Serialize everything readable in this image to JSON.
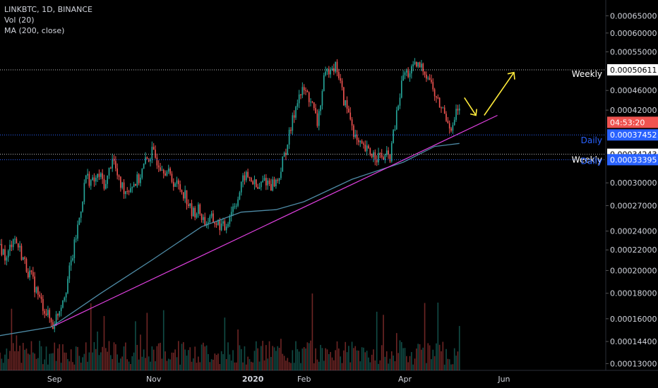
{
  "header": {
    "symbol_line": "LINKBTC, 1D, BINANCE",
    "vol_line": "Vol (20)",
    "ma_line": "MA (200, close)"
  },
  "chart_data": {
    "type": "candlestick",
    "symbol": "LINKBTC",
    "interval": "1D",
    "exchange": "BINANCE",
    "x_labels": [
      "Sep",
      "Nov",
      "2020",
      "Feb",
      "Apr",
      "Jun"
    ],
    "y_ticks": [
      "0.00065000",
      "0.00060000",
      "0.00055000",
      "0.00046000",
      "0.00042000",
      "0.00030000",
      "0.00027000",
      "0.00024000",
      "0.00022000",
      "0.00020000",
      "0.00018000",
      "0.00016000",
      "0.00014400",
      "0.00013000"
    ],
    "y_scale": "log",
    "ylim": [
      0.000126,
      0.00069
    ],
    "price_series": [
      [
        "2019-08-01",
        0.000225
      ],
      [
        "2019-08-05",
        0.00021
      ],
      [
        "2019-08-09",
        0.000235
      ],
      [
        "2019-08-13",
        0.00022
      ],
      [
        "2019-08-17",
        0.000203
      ],
      [
        "2019-08-21",
        0.00019
      ],
      [
        "2019-08-25",
        0.000175
      ],
      [
        "2019-08-29",
        0.000165
      ],
      [
        "2019-09-02",
        0.000155
      ],
      [
        "2019-09-06",
        0.000168
      ],
      [
        "2019-09-10",
        0.000185
      ],
      [
        "2019-09-14",
        0.000215
      ],
      [
        "2019-09-18",
        0.000255
      ],
      [
        "2019-09-22",
        0.00031
      ],
      [
        "2019-09-26",
        0.0003
      ],
      [
        "2019-09-30",
        0.00031
      ],
      [
        "2019-10-04",
        0.000296
      ],
      [
        "2019-10-08",
        0.00034
      ],
      [
        "2019-10-12",
        0.0003
      ],
      [
        "2019-10-16",
        0.00029
      ],
      [
        "2019-10-20",
        0.000298
      ],
      [
        "2019-10-24",
        0.000305
      ],
      [
        "2019-10-28",
        0.00033
      ],
      [
        "2019-11-01",
        0.000345
      ],
      [
        "2019-11-05",
        0.00033
      ],
      [
        "2019-11-09",
        0.00032
      ],
      [
        "2019-11-13",
        0.000305
      ],
      [
        "2019-11-17",
        0.000295
      ],
      [
        "2019-11-21",
        0.000285
      ],
      [
        "2019-11-25",
        0.00026
      ],
      [
        "2019-11-29",
        0.000265
      ],
      [
        "2019-12-03",
        0.00025
      ],
      [
        "2019-12-07",
        0.000253
      ],
      [
        "2019-12-11",
        0.000248
      ],
      [
        "2019-12-15",
        0.000243
      ],
      [
        "2019-12-19",
        0.000265
      ],
      [
        "2019-12-23",
        0.00028
      ],
      [
        "2019-12-27",
        0.00031
      ],
      [
        "2019-12-31",
        0.000305
      ],
      [
        "2020-01-04",
        0.00029
      ],
      [
        "2020-01-08",
        0.000305
      ],
      [
        "2020-01-12",
        0.000298
      ],
      [
        "2020-01-16",
        0.000303
      ],
      [
        "2020-01-20",
        0.00034
      ],
      [
        "2020-01-24",
        0.000385
      ],
      [
        "2020-01-28",
        0.000445
      ],
      [
        "2020-02-01",
        0.00046
      ],
      [
        "2020-02-05",
        0.00044
      ],
      [
        "2020-02-09",
        0.000395
      ],
      [
        "2020-02-13",
        0.00048
      ],
      [
        "2020-02-17",
        0.00052
      ],
      [
        "2020-02-21",
        0.00051
      ],
      [
        "2020-02-25",
        0.00044
      ],
      [
        "2020-02-29",
        0.000405
      ],
      [
        "2020-03-04",
        0.00036
      ],
      [
        "2020-03-08",
        0.00035
      ],
      [
        "2020-03-12",
        0.000345
      ],
      [
        "2020-03-16",
        0.00034
      ],
      [
        "2020-03-20",
        0.000337
      ],
      [
        "2020-03-24",
        0.00034
      ],
      [
        "2020-03-28",
        0.00041
      ],
      [
        "2020-04-01",
        0.000495
      ],
      [
        "2020-04-05",
        0.0005
      ],
      [
        "2020-04-09",
        0.000515
      ],
      [
        "2020-04-13",
        0.00051
      ],
      [
        "2020-04-17",
        0.000485
      ],
      [
        "2020-04-21",
        0.00044
      ],
      [
        "2020-04-25",
        0.00042
      ],
      [
        "2020-04-29",
        0.000395
      ],
      [
        "2020-05-01",
        0.000385
      ],
      [
        "2020-05-03",
        0.00042
      ],
      [
        "2020-05-05",
        0.000415
      ]
    ],
    "volume_bars": 260,
    "ma_200_series": [
      [
        "2019-08-01",
        0.000148
      ],
      [
        "2019-09-01",
        0.000154
      ],
      [
        "2019-10-01",
        0.00018
      ],
      [
        "2019-11-01",
        0.00021
      ],
      [
        "2019-12-01",
        0.000245
      ],
      [
        "2019-12-25",
        0.000262
      ],
      [
        "2020-01-15",
        0.000265
      ],
      [
        "2020-02-01",
        0.000275
      ],
      [
        "2020-03-01",
        0.000305
      ],
      [
        "2020-04-01",
        0.00033
      ],
      [
        "2020-04-20",
        0.000355
      ],
      [
        "2020-05-05",
        0.00036
      ]
    ],
    "trendline": {
      "from": [
        "2019-09-03",
        0.000155
      ],
      "to": [
        "2020-05-28",
        0.00041
      ],
      "color": "#e040e0"
    },
    "horizontal_lines": [
      {
        "label": "Weekly",
        "price": "0.00050611",
        "color": "#ffffff"
      },
      {
        "label": "Daily",
        "price": "0.00037452",
        "color": "#2962ff"
      },
      {
        "label": "",
        "price": "0.00034243",
        "color": "#ffffff"
      },
      {
        "label": "Weekly",
        "price": "0.00033395",
        "color": "#2962ff"
      },
      {
        "label": "Daily",
        "price": "",
        "color": "#2962ff"
      }
    ],
    "countdown_label": "04:53:20",
    "arrows": [
      "down-right",
      "up-right"
    ],
    "colors": {
      "up": "#26a69a",
      "down": "#ef5350",
      "ma": "#4e8ba6",
      "arrow": "#ffeb3b",
      "countdown_bg": "#ef5350"
    }
  }
}
